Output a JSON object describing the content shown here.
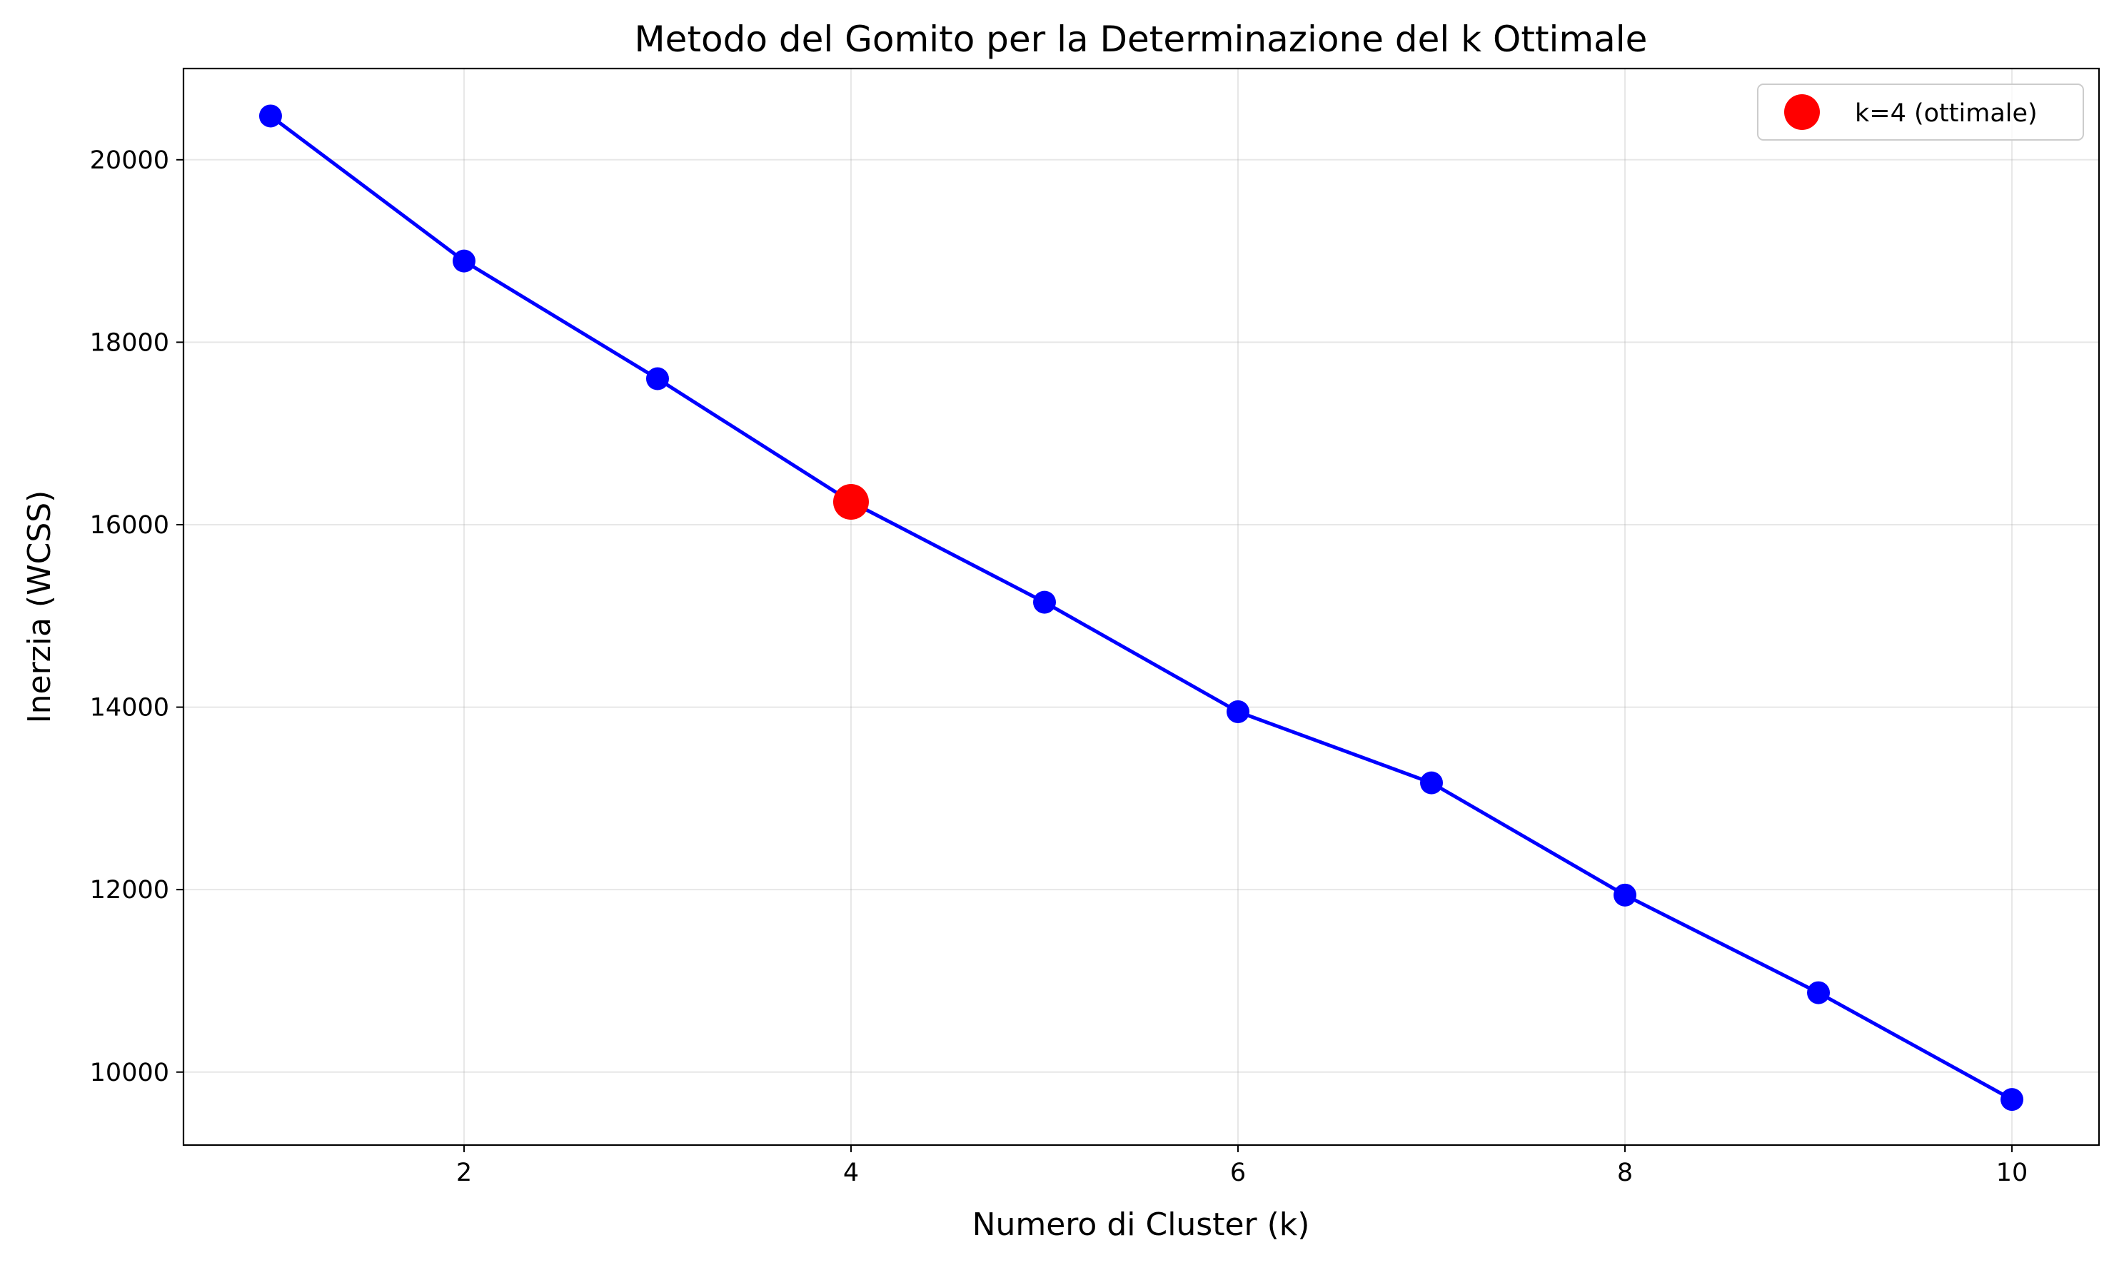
{
  "chart_data": {
    "type": "line",
    "title": "Metodo del Gomito per la Determinazione del k Ottimale",
    "xlabel": "Numero di Cluster (k)",
    "ylabel": "Inerzia (WCSS)",
    "xlim": [
      0.55,
      10.45
    ],
    "ylim": [
      9200,
      21000
    ],
    "xticks": [
      2,
      4,
      6,
      8,
      10
    ],
    "yticks": [
      10000,
      12000,
      14000,
      16000,
      18000,
      20000
    ],
    "grid": true,
    "legend_position": "top-right",
    "series": [
      {
        "x": [
          1,
          2,
          3,
          4,
          5,
          6,
          7,
          8,
          9,
          10
        ],
        "values": [
          20480,
          18890,
          17600,
          16250,
          15150,
          13950,
          13170,
          11940,
          10870,
          9700
        ],
        "color": "#0000ff",
        "marker": "circle"
      }
    ],
    "highlight": {
      "label": "k=4 (ottimale)",
      "x": 4,
      "y": 16250,
      "color": "#ff0000"
    }
  }
}
